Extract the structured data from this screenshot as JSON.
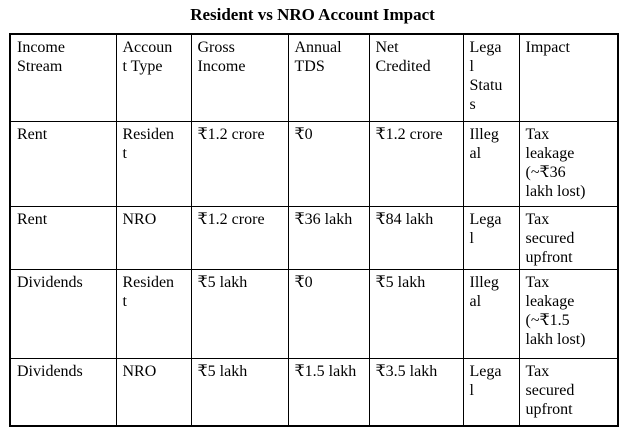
{
  "title": "Resident vs NRO Account Impact",
  "table": {
    "headers": [
      "Income\nStream",
      "Accoun\nt Type",
      "Gross\nIncome",
      "Annual\nTDS",
      "Net\nCredited",
      "Lega\nl\nStatu\ns",
      "Impact"
    ],
    "rows": [
      [
        "Rent",
        "Residen\nt",
        "₹1.2 crore",
        "₹0",
        "₹1.2 crore",
        "Illeg\nal",
        "Tax\nleakage\n(~₹36\nlakh lost)"
      ],
      [
        "Rent",
        "NRO",
        "₹1.2 crore",
        "₹36 lakh",
        "₹84 lakh",
        "Lega\nl",
        "Tax\nsecured\nupfront"
      ],
      [
        "Dividends",
        "Residen\nt",
        "₹5 lakh",
        "₹0",
        "₹5 lakh",
        "Illeg\nal",
        "Tax\nleakage\n(~₹1.5\nlakh lost)"
      ],
      [
        "Dividends",
        "NRO",
        "₹5 lakh",
        "₹1.5 lakh",
        "₹3.5 lakh",
        "Lega\nl",
        "Tax\nsecured\nupfront"
      ]
    ]
  }
}
